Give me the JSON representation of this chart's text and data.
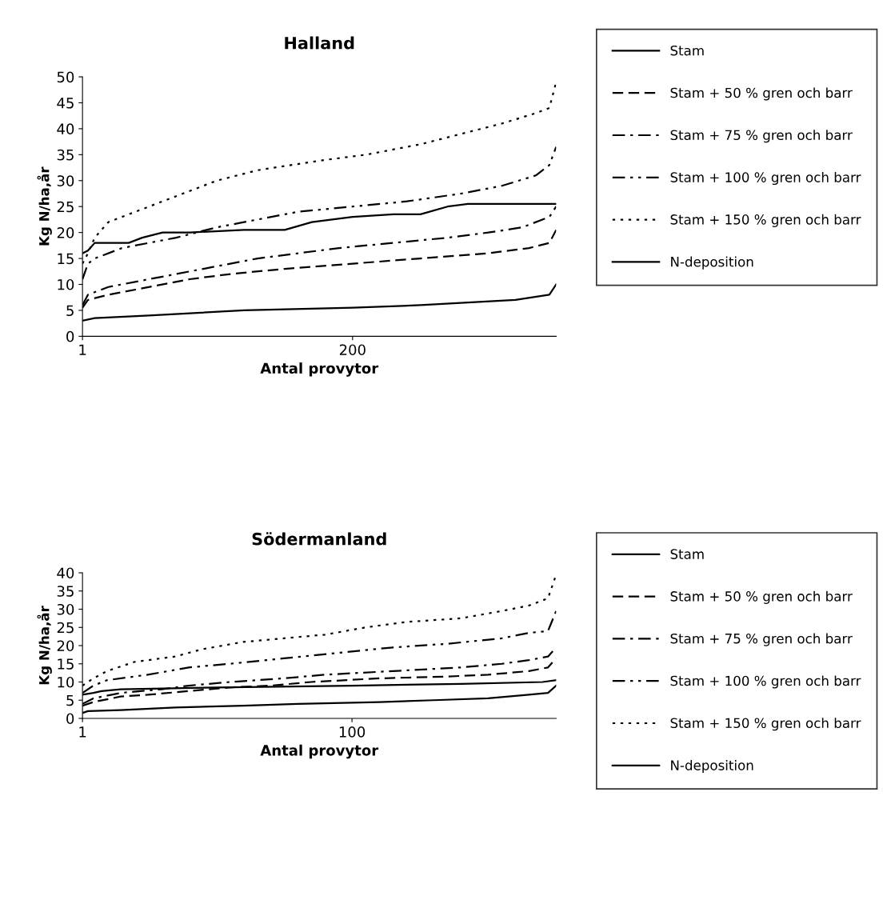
{
  "chart_data": [
    {
      "type": "line",
      "title": "Halland",
      "xlabel": "Antal provytor",
      "ylabel": "Kg N/ha,år",
      "xlim": [
        1,
        350
      ],
      "xticks": [
        1,
        200
      ],
      "ylim": [
        0,
        50
      ],
      "yticks": [
        0,
        5,
        10,
        15,
        20,
        25,
        30,
        35,
        40,
        45,
        50
      ],
      "grid": false,
      "legend": "right",
      "marker": "none",
      "series": [
        {
          "name": "Stam",
          "color": "#000000",
          "line_style": "solid",
          "x": [
            1,
            10,
            50,
            120,
            200,
            250,
            320,
            345,
            350
          ],
          "values": [
            3,
            3.5,
            4,
            5,
            5.5,
            6,
            7,
            8,
            10
          ]
        },
        {
          "name": "Stam + 50 % gren och barr",
          "color": "#000000",
          "line_style": "dashed",
          "x": [
            1,
            5,
            20,
            40,
            80,
            110,
            150,
            200,
            250,
            300,
            330,
            345,
            350
          ],
          "values": [
            5.5,
            7,
            8,
            9,
            11,
            12,
            13,
            14,
            15,
            16,
            17,
            18,
            20.5
          ]
        },
        {
          "name": "Stam + 75 % gren och barr",
          "color": "#000000",
          "line_style": "dashdot",
          "x": [
            1,
            5,
            20,
            50,
            90,
            130,
            160,
            190,
            230,
            270,
            300,
            325,
            345,
            350
          ],
          "values": [
            6,
            8,
            9.5,
            11,
            13,
            15,
            16,
            17,
            18,
            19,
            20,
            21,
            23,
            25
          ]
        },
        {
          "name": "Stam + 100 % gren och barr",
          "color": "#000000",
          "line_style": "dashdotdot",
          "x": [
            1,
            5,
            10,
            30,
            70,
            100,
            120,
            160,
            200,
            240,
            280,
            310,
            335,
            345,
            350
          ],
          "values": [
            11,
            14,
            15,
            17,
            19,
            21,
            22,
            24,
            25,
            26,
            27.5,
            29,
            31,
            33,
            36.5
          ]
        },
        {
          "name": "Stam + 150 % gren och barr",
          "color": "#000000",
          "line_style": "dotted",
          "x": [
            1,
            5,
            10,
            20,
            40,
            60,
            80,
            100,
            130,
            180,
            210,
            250,
            280,
            310,
            335,
            345,
            350
          ],
          "values": [
            14,
            16,
            19,
            22,
            24,
            26,
            28,
            30,
            32,
            34,
            35,
            37,
            39,
            41,
            43,
            44,
            49
          ]
        },
        {
          "name": "N-deposition",
          "color": "#000000",
          "line_style": "solid",
          "x": [
            1,
            5,
            10,
            35,
            45,
            60,
            80,
            120,
            150,
            170,
            200,
            230,
            250,
            270,
            285,
            350
          ],
          "values": [
            16,
            16.5,
            18,
            18,
            19,
            20,
            20,
            20.5,
            20.5,
            22,
            23,
            23.5,
            23.5,
            25,
            25.5,
            25.5
          ]
        }
      ]
    },
    {
      "type": "line",
      "title": "Södermanland",
      "xlabel": "Antal provytor",
      "ylabel": "Kg N/ha,år",
      "xlim": [
        1,
        175
      ],
      "xticks": [
        1,
        100
      ],
      "ylim": [
        0,
        40
      ],
      "yticks": [
        0,
        5,
        10,
        15,
        20,
        25,
        30,
        35,
        40
      ],
      "grid": false,
      "legend": "right",
      "marker": "none",
      "series": [
        {
          "name": "Stam",
          "color": "#000000",
          "line_style": "solid",
          "x": [
            1,
            3,
            15,
            35,
            60,
            80,
            110,
            130,
            150,
            165,
            172,
            175
          ],
          "values": [
            1.5,
            2,
            2.3,
            3,
            3.5,
            4,
            4.5,
            5,
            5.5,
            6.5,
            7,
            9
          ]
        },
        {
          "name": "Stam + 50 % gren och barr",
          "color": "#000000",
          "line_style": "dashed",
          "x": [
            1,
            5,
            15,
            25,
            40,
            55,
            70,
            85,
            110,
            135,
            150,
            165,
            172,
            175
          ],
          "values": [
            3.5,
            4.5,
            6,
            6.5,
            7.5,
            8.5,
            9,
            10,
            11,
            11.5,
            12,
            13,
            14,
            16.5
          ]
        },
        {
          "name": "Stam + 75 % gren och barr",
          "color": "#000000",
          "line_style": "dashdot",
          "x": [
            1,
            5,
            15,
            30,
            40,
            55,
            75,
            90,
            115,
            140,
            155,
            165,
            172,
            175
          ],
          "values": [
            4,
            5.5,
            7,
            8,
            9,
            10,
            11,
            12,
            13,
            14,
            15,
            16,
            17,
            19.5
          ]
        },
        {
          "name": "Stam + 100 % gren och barr",
          "color": "#000000",
          "line_style": "dashdotdot",
          "x": [
            1,
            5,
            10,
            25,
            40,
            55,
            75,
            95,
            115,
            135,
            155,
            165,
            172,
            175
          ],
          "values": [
            7,
            9,
            10.5,
            12,
            14,
            15,
            16.5,
            18,
            19.5,
            20.5,
            22,
            23.5,
            24,
            29.5
          ]
        },
        {
          "name": "Stam + 150 % gren och barr",
          "color": "#000000",
          "line_style": "dotted",
          "x": [
            1,
            5,
            10,
            20,
            35,
            45,
            60,
            75,
            90,
            105,
            120,
            140,
            155,
            165,
            172,
            175
          ],
          "values": [
            9,
            11,
            13,
            15.5,
            17,
            19,
            21,
            22,
            23,
            25,
            26.5,
            27.5,
            29.5,
            31,
            33,
            39.5
          ]
        },
        {
          "name": "N-deposition",
          "color": "#000000",
          "line_style": "solid",
          "x": [
            1,
            5,
            8,
            15,
            50,
            100,
            140,
            170,
            175
          ],
          "values": [
            6.5,
            7,
            7.5,
            8,
            8.5,
            9,
            9.5,
            10,
            10.5
          ]
        }
      ]
    }
  ]
}
